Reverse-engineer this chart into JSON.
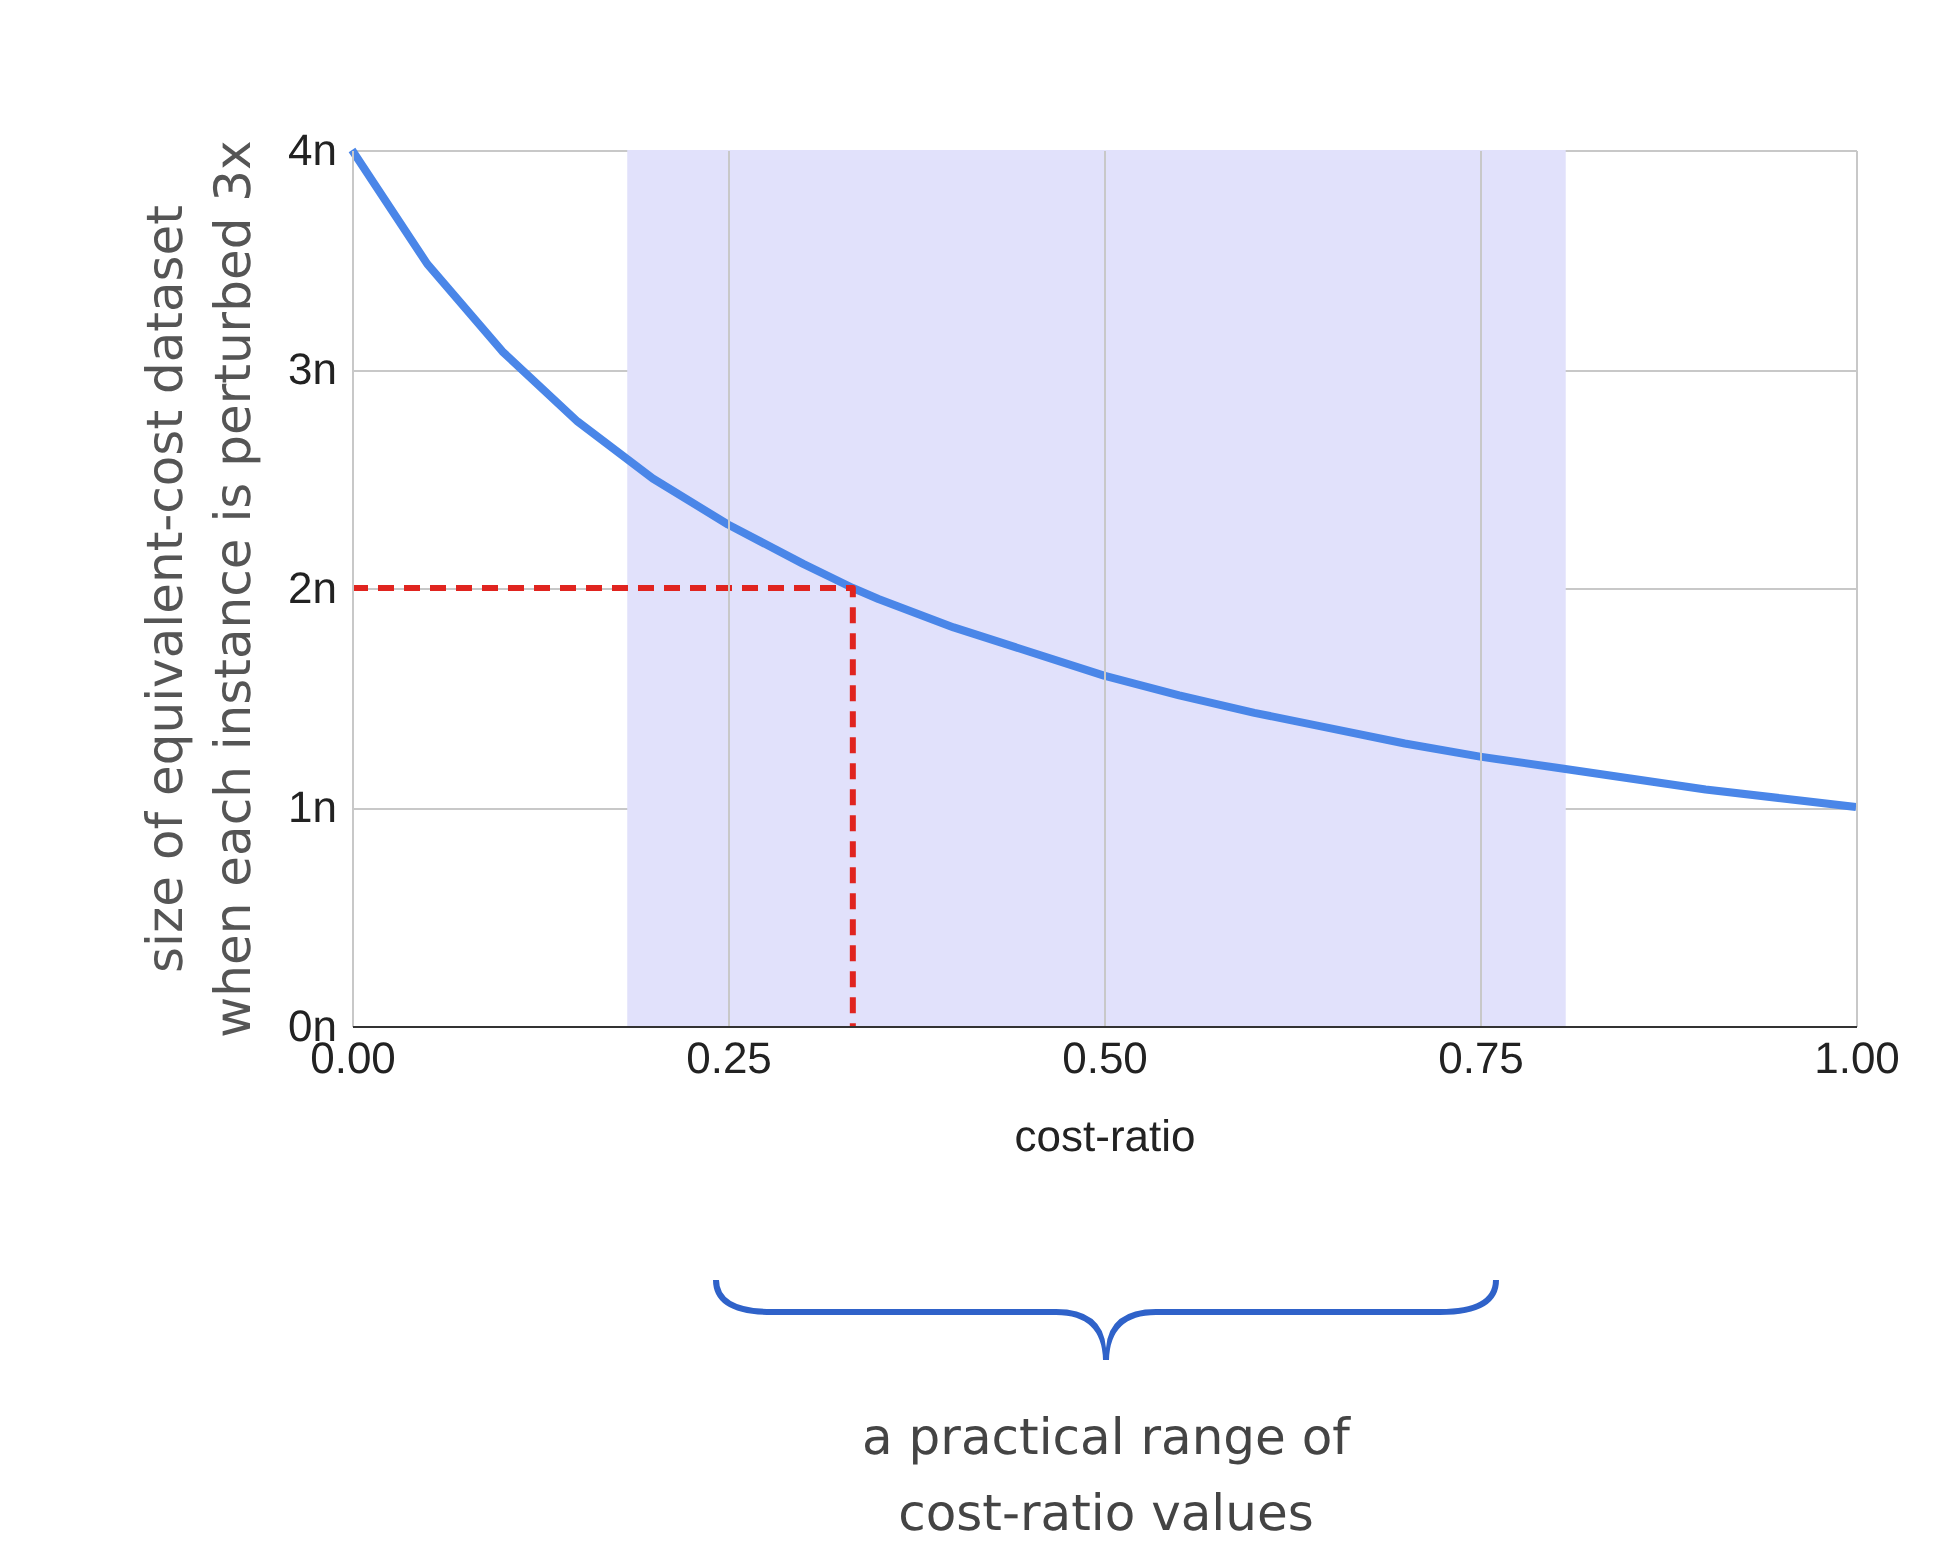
{
  "chart_data": {
    "type": "line",
    "xlabel": "cost-ratio",
    "ylabel": "size of equivalent-cost dataset\nwhen each instance is perturbed 3x",
    "annotations": [
      "a practical range of\ncost-ratio values"
    ],
    "xlim": [
      0,
      1
    ],
    "ylim": [
      0,
      4
    ],
    "xticks": [
      {
        "value": 0,
        "label": "0.00"
      },
      {
        "value": 0.25,
        "label": "0.25"
      },
      {
        "value": 0.5,
        "label": "0.50"
      },
      {
        "value": 0.75,
        "label": "0.75"
      },
      {
        "value": 1,
        "label": "1.00"
      }
    ],
    "yticks": [
      {
        "value": 0,
        "label": "0n"
      },
      {
        "value": 1,
        "label": "1n"
      },
      {
        "value": 2,
        "label": "2n"
      },
      {
        "value": 3,
        "label": "3n"
      },
      {
        "value": 4,
        "label": "4n"
      }
    ],
    "grid": true,
    "bands": [
      {
        "axis": "x",
        "from": 0.183,
        "to": 0.807,
        "color": "#e1e1fb"
      }
    ],
    "series": [
      {
        "type": "line",
        "color": "#4a86e8",
        "line_style": "solid",
        "x": [
          0,
          0.05,
          0.1,
          0.15,
          0.2,
          0.25,
          0.3,
          0.333,
          0.35,
          0.4,
          0.45,
          0.5,
          0.55,
          0.6,
          0.65,
          0.7,
          0.75,
          0.8,
          0.85,
          0.9,
          0.95,
          1
        ],
        "values": [
          4,
          3.48,
          3.08,
          2.76,
          2.5,
          2.29,
          2.11,
          2,
          1.95,
          1.82,
          1.71,
          1.6,
          1.51,
          1.43,
          1.36,
          1.29,
          1.23,
          1.18,
          1.13,
          1.08,
          1.04,
          1
        ]
      },
      {
        "type": "line",
        "color": "#e0241f",
        "line_style": "dashed",
        "x": [
          0,
          0.333,
          0.333
        ],
        "values": [
          2,
          2,
          0
        ]
      }
    ]
  }
}
